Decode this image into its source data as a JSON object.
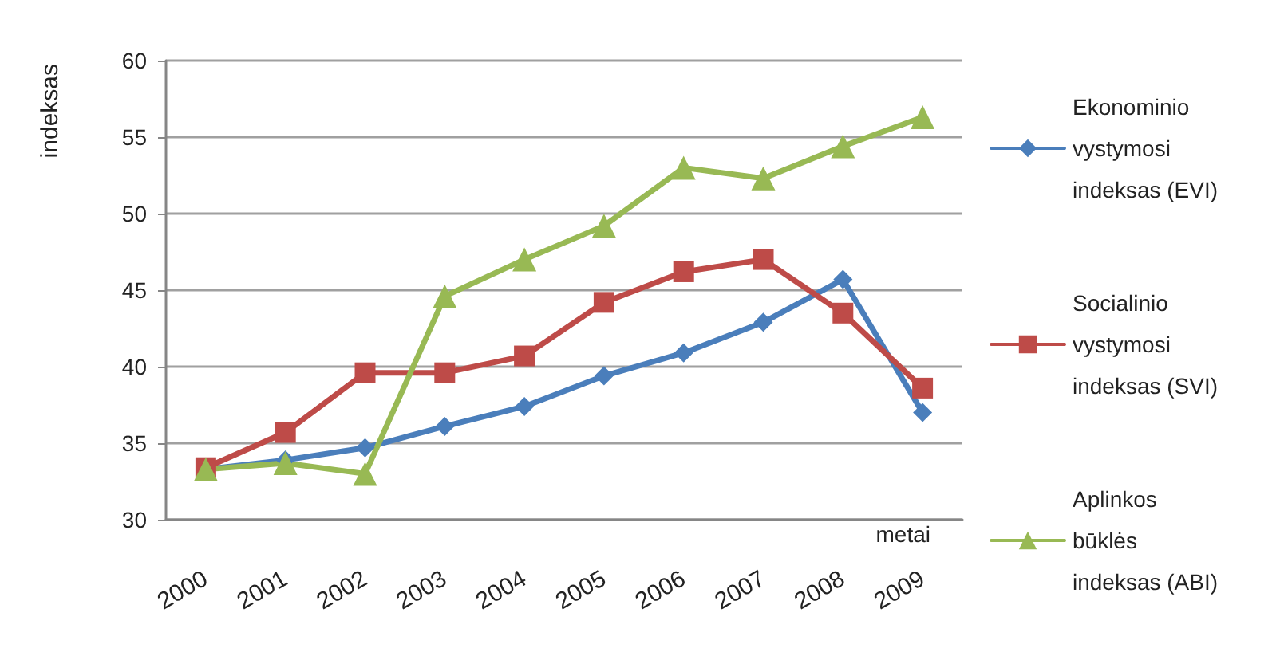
{
  "chart_data": {
    "type": "line",
    "xlabel": "metai",
    "ylabel": "indeksas",
    "categories": [
      "2000",
      "2001",
      "2002",
      "2003",
      "2004",
      "2005",
      "2006",
      "2007",
      "2008",
      "2009"
    ],
    "series": [
      {
        "name": "Ekonominio vystymosi indeksas (EVI)",
        "color": "#4a7ebb",
        "marker": "diamond",
        "values": [
          33.3,
          33.9,
          34.7,
          36.1,
          37.4,
          39.4,
          40.9,
          42.9,
          45.7,
          37.0
        ]
      },
      {
        "name": "Socialinio vystymosi indeksas (SVI)",
        "color": "#be4b48",
        "marker": "square",
        "values": [
          33.4,
          35.7,
          39.6,
          39.6,
          40.7,
          44.2,
          46.2,
          47.0,
          43.5,
          38.6
        ]
      },
      {
        "name": "Aplinkos būklės indeksas (ABI)",
        "color": "#98b954",
        "marker": "triangle",
        "values": [
          33.3,
          33.7,
          33.0,
          44.6,
          47.0,
          49.2,
          53.0,
          52.3,
          54.4,
          56.3
        ]
      }
    ],
    "ylim": [
      30,
      60
    ],
    "yticks": [
      30,
      35,
      40,
      45,
      50,
      55,
      60
    ],
    "grid": "y",
    "legend": "right",
    "line_style": "solid"
  }
}
